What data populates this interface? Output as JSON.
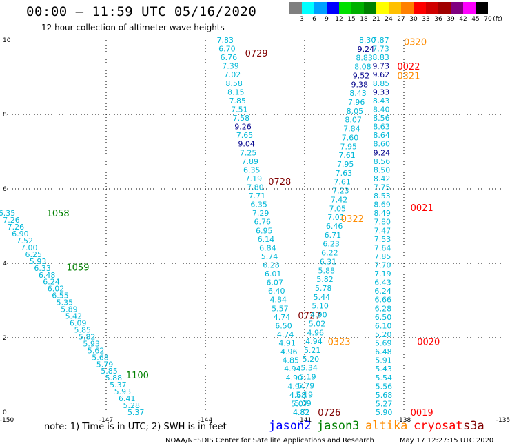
{
  "header": {
    "title": "00:00 – 11:59 UTC 05/16/2020",
    "subtitle": "12 hour collection of altimeter wave heights"
  },
  "legend": {
    "unit": "(ft)",
    "items": [
      {
        "label": "3",
        "color": "#7f7f7f"
      },
      {
        "label": "6",
        "color": "#00ffff"
      },
      {
        "label": "9",
        "color": "#00a0ff"
      },
      {
        "label": "12",
        "color": "#0000ff"
      },
      {
        "label": "15",
        "color": "#00e000"
      },
      {
        "label": "18",
        "color": "#00b000"
      },
      {
        "label": "21",
        "color": "#008000"
      },
      {
        "label": "24",
        "color": "#ffff00"
      },
      {
        "label": "27",
        "color": "#ffc000"
      },
      {
        "label": "30",
        "color": "#ff8000"
      },
      {
        "label": "33",
        "color": "#ff0000"
      },
      {
        "label": "36",
        "color": "#d00000"
      },
      {
        "label": "39",
        "color": "#a00000"
      },
      {
        "label": "42",
        "color": "#800080"
      },
      {
        "label": "45",
        "color": "#ff00ff"
      },
      {
        "label": "70",
        "color": "#000000"
      }
    ]
  },
  "map": {
    "lon_ticks": [
      "-150",
      "-147",
      "-144",
      "-141",
      "-138",
      "-135"
    ],
    "lat_ticks": [
      "0",
      "2",
      "4",
      "6",
      "8",
      "10"
    ],
    "lon_range": [
      -150,
      -135
    ],
    "lat_range": [
      0,
      10
    ]
  },
  "colors": {
    "low": "#00b8d8",
    "mid": "#00008b",
    "jason2": "#0000ff",
    "jason3": "#008000",
    "altika": "#ff8c00",
    "cryosat": "#ff0000",
    "s3a": "#800000"
  },
  "tracks": [
    {
      "id": "pass-1058",
      "lon_start": -150.0,
      "lat_start": 5.35,
      "lon_end": -146.1,
      "lat_end": 0.0,
      "values": [
        "6.35",
        "7.26",
        "7.26",
        "6.90",
        "7.52",
        "7.00",
        "6.25",
        "5.93",
        "6.33",
        "6.48",
        "6.24",
        "6.02",
        "6.55",
        "5.35",
        "5.89",
        "5.42",
        "6.09",
        "5.85",
        "5.82",
        "5.93",
        "5.62",
        "5.68",
        "5.79",
        "5.85",
        "5.88",
        "5.37",
        "5.93",
        "6.41",
        "5.28",
        "5.37"
      ],
      "time_labels": [
        {
          "text": "1058",
          "lon": -148.8,
          "lat": 5.35,
          "color": "#008000"
        },
        {
          "text": "1059",
          "lon": -148.2,
          "lat": 3.9,
          "color": "#008000"
        },
        {
          "text": "1100",
          "lon": -146.4,
          "lat": 1.0,
          "color": "#008000"
        }
      ]
    },
    {
      "id": "pass-0729",
      "lon_start": -143.4,
      "lat_start": 10.0,
      "lon_end": -141.1,
      "lat_end": 0.0,
      "values": [
        "7.83",
        "6.70",
        "6.76",
        "7.39",
        "7.02",
        "8.58",
        "8.15",
        "7.85",
        "7.51",
        "7.58",
        "9.26",
        "7.65",
        "9.04",
        "7.25",
        "7.89",
        "6.35",
        "7.19",
        "7.80",
        "7.71",
        "6.35",
        "7.29",
        "6.76",
        "6.95",
        "6.14",
        "6.84",
        "5.74",
        "6.28",
        "6.01",
        "6.07",
        "6.40",
        "4.84",
        "5.57",
        "4.74",
        "6.50",
        "4.74",
        "4.91",
        "4.96",
        "4.85",
        "4.94",
        "4.90",
        "4.94",
        "4.68",
        "5.07",
        "4.82"
      ],
      "time_labels": [
        {
          "text": "0729",
          "lon": -142.8,
          "lat": 9.65,
          "color": "#800000"
        },
        {
          "text": "0728",
          "lon": -142.1,
          "lat": 6.2,
          "color": "#800000"
        },
        {
          "text": "0727",
          "lon": -141.2,
          "lat": 2.6,
          "color": "#800000"
        },
        {
          "text": "0726",
          "lon": -140.6,
          "lat": 0.0,
          "color": "#800000"
        }
      ]
    },
    {
      "id": "pass-0320",
      "lon_start": -139.1,
      "lat_start": 10.0,
      "lon_end": -141.1,
      "lat_end": 0.0,
      "values": [
        "8.30",
        "9.24",
        "8.83",
        "8.08",
        "9.52",
        "9.38",
        "8.43",
        "7.96",
        "8.05",
        "8.07",
        "7.84",
        "7.60",
        "7.95",
        "7.61",
        "7.95",
        "7.63",
        "7.61",
        "7.23",
        "7.42",
        "7.05",
        "7.01",
        "6.46",
        "6.71",
        "6.23",
        "6.22",
        "6.31",
        "5.88",
        "5.82",
        "5.78",
        "5.44",
        "5.10",
        "4.90",
        "5.02",
        "4.96",
        "4.94",
        "5.21",
        "5.20",
        "5.34",
        "5.19",
        "5.79",
        "5.19",
        "5.09",
        "4.82"
      ],
      "time_labels": [
        {
          "text": "0323",
          "lon": -140.3,
          "lat": 1.9,
          "color": "#ff8c00"
        },
        {
          "text": "0322",
          "lon": -139.9,
          "lat": 5.2,
          "color": "#ff8c00"
        }
      ]
    },
    {
      "id": "pass-0022",
      "lon_start": -138.7,
      "lat_start": 10.0,
      "lon_end": -138.6,
      "lat_end": 0.0,
      "values": [
        "7.87",
        "7.73",
        "8.83",
        "9.73",
        "9.62",
        "8.85",
        "9.33",
        "8.43",
        "8.40",
        "8.56",
        "8.63",
        "8.64",
        "8.60",
        "9.24",
        "8.56",
        "8.50",
        "8.42",
        "7.75",
        "8.53",
        "8.69",
        "8.49",
        "7.80",
        "7.47",
        "7.53",
        "7.64",
        "7.85",
        "7.70",
        "7.19",
        "6.43",
        "6.24",
        "6.66",
        "6.28",
        "6.50",
        "6.10",
        "5.20",
        "5.69",
        "6.48",
        "5.91",
        "5.43",
        "5.54",
        "5.56",
        "5.68",
        "5.27",
        "5.90"
      ],
      "time_labels": [
        {
          "text": "0320",
          "lon": -138.0,
          "lat": 9.95,
          "color": "#ff8c00"
        },
        {
          "text": "0022",
          "lon": -138.2,
          "lat": 9.3,
          "color": "#ff0000"
        },
        {
          "text": "0321",
          "lon": -138.2,
          "lat": 9.05,
          "color": "#ff8c00"
        },
        {
          "text": "0021",
          "lon": -137.8,
          "lat": 5.5,
          "color": "#ff0000"
        },
        {
          "text": "0020",
          "lon": -137.6,
          "lat": 1.9,
          "color": "#ff0000"
        },
        {
          "text": "0019",
          "lon": -137.8,
          "lat": 0.0,
          "color": "#ff0000"
        }
      ]
    }
  ],
  "footer": {
    "note": "note: 1) Time is in UTC; 2) SWH is in feet",
    "satellites": [
      {
        "name": "jason2",
        "color": "#0000ff"
      },
      {
        "name": "jason3",
        "color": "#008000"
      },
      {
        "name": "altika",
        "color": "#ff8c00"
      },
      {
        "name": "cryosat",
        "color": "#ff0000"
      },
      {
        "name": "s3a",
        "color": "#800000"
      }
    ],
    "credit": "NOAA/NESDIS Center for Satellite Applications and Research",
    "timestamp": "May 17 12:27:15 UTC 2020"
  }
}
